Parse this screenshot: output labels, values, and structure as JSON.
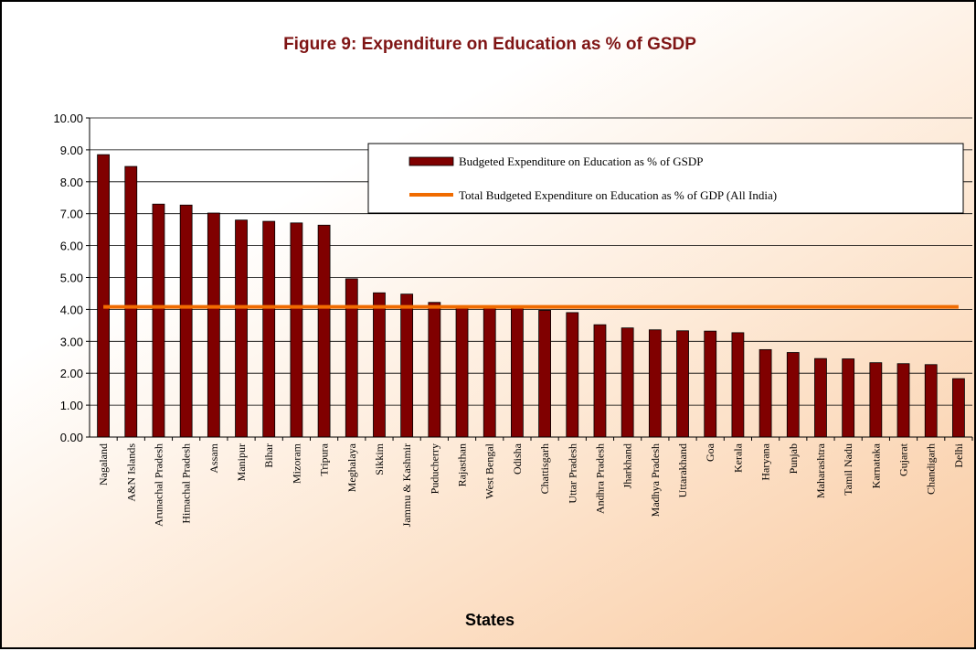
{
  "chart_data": {
    "type": "bar",
    "title": "Figure 9: Expenditure on Education as % of GSDP",
    "xlabel": "States",
    "ylabel": "",
    "ylim": [
      0,
      10
    ],
    "yticks": [
      "0.00",
      "1.00",
      "2.00",
      "3.00",
      "4.00",
      "5.00",
      "6.00",
      "7.00",
      "8.00",
      "9.00",
      "10.00"
    ],
    "grid": true,
    "legend_position": "top-right",
    "categories": [
      "Nagaland",
      "A&N Islands",
      "Arunachal Pradesh",
      "Himachal Pradesh",
      "Assam",
      "Manipur",
      "Bihar",
      "Mizoram",
      "Tripura",
      "Meghalaya",
      "Sikkim",
      "Jammu & Kashmir",
      "Puducherry",
      "Rajasthan",
      "West Bengal",
      "Odisha",
      "Chattisgarh",
      "Uttar Pradesh",
      "Andhra Pradesh",
      "Jharkhand",
      "Madhya Pradesh",
      "Uttarakhand",
      "Goa",
      "Kerala",
      "Haryana",
      "Punjab",
      "Maharashtra",
      "Tamil Nadu",
      "Karnataka",
      "Gujarat",
      "Chandigarh",
      "Delhi"
    ],
    "series": [
      {
        "name": "Budgeted Expenditure on Education as % of GSDP",
        "type": "bar",
        "color": "#800000",
        "values": [
          8.85,
          8.48,
          7.3,
          7.27,
          7.02,
          6.8,
          6.76,
          6.71,
          6.64,
          4.96,
          4.52,
          4.48,
          4.22,
          4.1,
          4.08,
          4.05,
          3.97,
          3.9,
          3.52,
          3.42,
          3.36,
          3.33,
          3.32,
          3.27,
          2.74,
          2.65,
          2.46,
          2.45,
          2.33,
          2.3,
          2.27,
          1.83
        ]
      },
      {
        "name": "Total Budgeted Expenditure on Education as % of GDP (All India)",
        "type": "line",
        "color": "#f06b00",
        "value": 4.08
      }
    ]
  }
}
